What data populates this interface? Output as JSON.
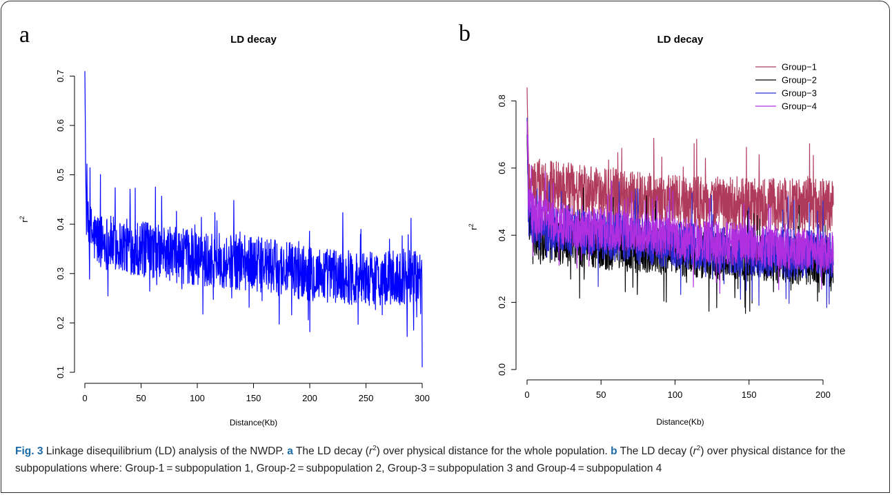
{
  "chart_data": [
    {
      "type": "line",
      "panel_label": "a",
      "title": "LD decay",
      "xlabel": "Distance(Kb)",
      "ylabel": "r",
      "ylabel_sup": "2",
      "xlim": [
        0,
        300
      ],
      "ylim": [
        0.1,
        0.72
      ],
      "xticks": [
        0,
        50,
        100,
        150,
        200,
        250,
        300
      ],
      "yticks": [
        0.1,
        0.2,
        0.3,
        0.4,
        0.5,
        0.6,
        0.7
      ],
      "grid": false,
      "series": [
        {
          "color": "#0000ff",
          "peak_r2": 0.71,
          "trend_x": [
            0,
            1,
            3,
            10,
            25,
            50,
            100,
            150,
            200,
            250,
            300
          ],
          "trend_y": [
            0.71,
            0.43,
            0.39,
            0.37,
            0.36,
            0.35,
            0.33,
            0.32,
            0.3,
            0.29,
            0.29
          ],
          "noise_amplitude": 0.035,
          "minimum_r2": 0.11
        }
      ]
    },
    {
      "type": "line",
      "panel_label": "b",
      "title": "LD decay",
      "xlabel": "Distance(Kb)",
      "ylabel": "r",
      "ylabel_sup": "2",
      "xlim": [
        0,
        207
      ],
      "ylim": [
        0,
        0.85
      ],
      "xticks": [
        0,
        50,
        100,
        150,
        200
      ],
      "yticks": [
        0.0,
        0.2,
        0.4,
        0.6,
        0.8
      ],
      "grid": false,
      "legend_position": "top-right",
      "series": [
        {
          "name": "Group−1",
          "color": "#b03a5b",
          "peak_r2": 0.84,
          "trend_x": [
            0,
            1,
            5,
            25,
            50,
            100,
            150,
            207
          ],
          "trend_y": [
            0.84,
            0.58,
            0.55,
            0.54,
            0.52,
            0.5,
            0.49,
            0.49
          ],
          "noise_amplitude": 0.05
        },
        {
          "name": "Group−2",
          "color": "#000000",
          "peak_r2": 0.7,
          "trend_x": [
            0,
            1,
            5,
            25,
            50,
            100,
            150,
            207
          ],
          "trend_y": [
            0.7,
            0.45,
            0.4,
            0.38,
            0.37,
            0.35,
            0.33,
            0.32
          ],
          "noise_amplitude": 0.045
        },
        {
          "name": "Group−3",
          "color": "#2b2bd6",
          "peak_r2": 0.75,
          "trend_x": [
            0,
            1,
            5,
            25,
            50,
            100,
            150,
            207
          ],
          "trend_y": [
            0.75,
            0.47,
            0.43,
            0.41,
            0.4,
            0.37,
            0.35,
            0.34
          ],
          "noise_amplitude": 0.045
        },
        {
          "name": "Group−4",
          "color": "#b030e0",
          "peak_r2": 0.74,
          "trend_x": [
            0,
            1,
            5,
            25,
            50,
            100,
            150,
            207
          ],
          "trend_y": [
            0.74,
            0.5,
            0.46,
            0.43,
            0.42,
            0.39,
            0.37,
            0.35
          ],
          "noise_amplitude": 0.04
        }
      ]
    }
  ],
  "caption": {
    "fig_label": "Fig. 3",
    "part1": " Linkage disequilibrium (LD) analysis of the NWDP. ",
    "a_label": "a",
    "part2": " The LD decay (",
    "r": "r",
    "sup": "2",
    "part3": ") over physical distance for the whole population. ",
    "b_label": "b",
    "part4": " The LD decay (",
    "part5": ") over physical distance for the subpopulations where: Group-1 = subpopulation 1, Group-2 = subpopulation 2, Group-3 = subpopulation 3 and Group-4 = subpopulation 4"
  }
}
